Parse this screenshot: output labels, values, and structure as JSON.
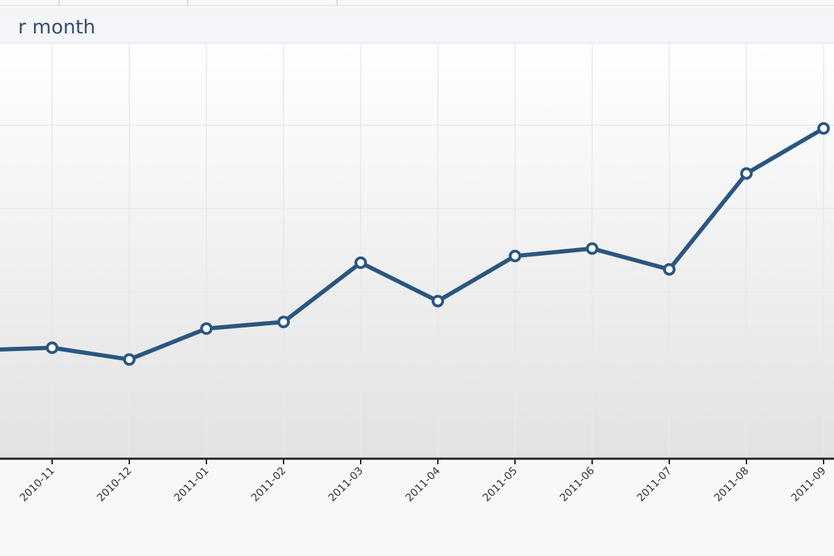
{
  "chart_data": {
    "type": "line",
    "title": "r month",
    "categories": [
      null,
      "2010-11",
      "2010-12",
      "2011-01",
      "2011-02",
      "2011-03",
      "2011-04",
      "2011-05",
      "2011-06",
      "2011-07",
      "2011-08",
      "2011-09"
    ],
    "series": [
      {
        "color": "#2a5680",
        "values": [
          1.3,
          1.33,
          1.19,
          1.56,
          1.64,
          2.35,
          1.89,
          2.43,
          2.52,
          2.27,
          3.42,
          3.96
        ]
      }
    ],
    "ylim": [
      0,
      5
    ],
    "grid": true
  }
}
